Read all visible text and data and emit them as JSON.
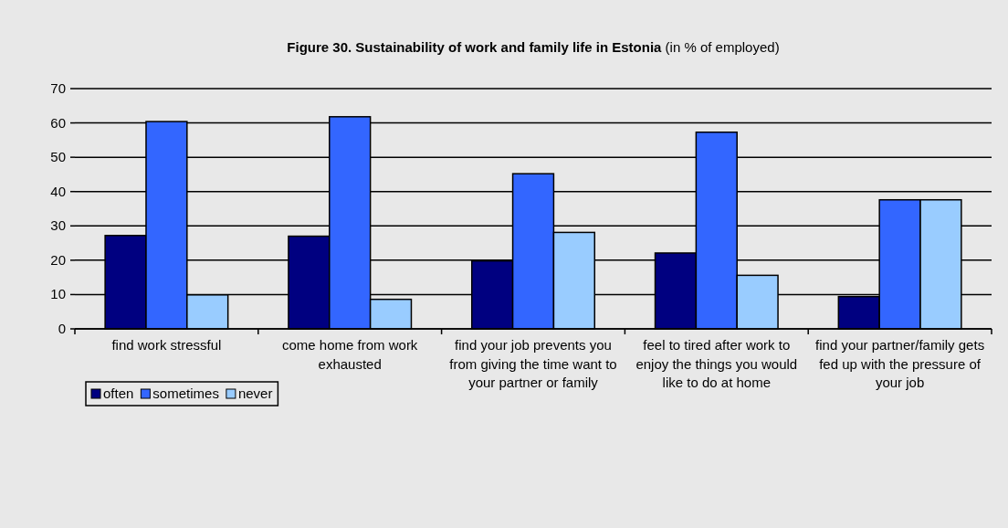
{
  "chart_data": {
    "type": "bar",
    "title": "Figure 30. Sustainability of work and family life in Estonia",
    "subtitle": "(in % of employed)",
    "categories": [
      "find work stressful",
      "come home from work exhausted",
      "find your job prevents you from giving the time want to your partner or family",
      "feel to tired after work to enjoy the things you would like to do at home",
      "find your partner/family gets fed up with the pressure of your job"
    ],
    "series": [
      {
        "name": "often",
        "color": "#000080",
        "values": [
          27.2,
          27,
          19.8,
          22.1,
          9.4
        ]
      },
      {
        "name": "sometimes",
        "color": "#3366ff",
        "values": [
          60.4,
          61.8,
          45.2,
          57.3,
          37.6
        ]
      },
      {
        "name": "never",
        "color": "#99ccff",
        "values": [
          9.9,
          8.6,
          28.1,
          15.6,
          37.6
        ]
      }
    ],
    "ylim": [
      0,
      70
    ],
    "yticks": [
      0,
      10,
      20,
      30,
      40,
      50,
      60,
      70
    ],
    "grid": "y",
    "legend": "bottom left"
  }
}
